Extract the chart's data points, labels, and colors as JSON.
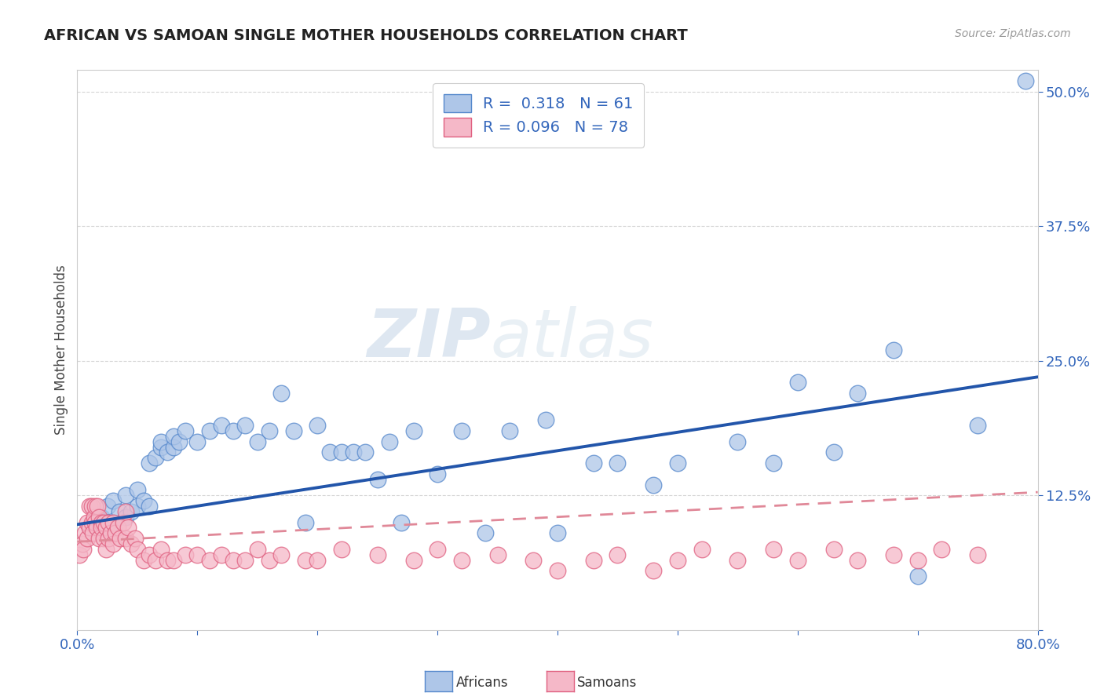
{
  "title": "AFRICAN VS SAMOAN SINGLE MOTHER HOUSEHOLDS CORRELATION CHART",
  "source": "Source: ZipAtlas.com",
  "ylabel": "Single Mother Households",
  "xlim": [
    0.0,
    0.8
  ],
  "ylim": [
    0.0,
    0.52
  ],
  "xticks": [
    0.0,
    0.1,
    0.2,
    0.3,
    0.4,
    0.5,
    0.6,
    0.7,
    0.8
  ],
  "xticklabels": [
    "0.0%",
    "",
    "",
    "",
    "",
    "",
    "",
    "",
    "80.0%"
  ],
  "ytick_positions": [
    0.0,
    0.125,
    0.25,
    0.375,
    0.5
  ],
  "yticklabels": [
    "",
    "12.5%",
    "25.0%",
    "37.5%",
    "50.0%"
  ],
  "african_color": "#aec6e8",
  "samoan_color": "#f5b8c8",
  "african_edge_color": "#5588cc",
  "samoan_edge_color": "#e06080",
  "african_line_color": "#2255aa",
  "samoan_line_color": "#e08898",
  "background_color": "#ffffff",
  "grid_color": "#cccccc",
  "legend_R_african": "0.318",
  "legend_N_african": "61",
  "legend_R_samoan": "0.096",
  "legend_N_samoan": "78",
  "watermark_zip": "ZIP",
  "watermark_atlas": "atlas",
  "african_x": [
    0.01,
    0.015,
    0.02,
    0.025,
    0.03,
    0.03,
    0.035,
    0.04,
    0.04,
    0.045,
    0.05,
    0.05,
    0.055,
    0.06,
    0.06,
    0.065,
    0.07,
    0.07,
    0.075,
    0.08,
    0.08,
    0.085,
    0.09,
    0.1,
    0.11,
    0.12,
    0.13,
    0.14,
    0.15,
    0.16,
    0.17,
    0.18,
    0.19,
    0.2,
    0.21,
    0.22,
    0.23,
    0.24,
    0.25,
    0.26,
    0.27,
    0.28,
    0.3,
    0.32,
    0.34,
    0.36,
    0.39,
    0.4,
    0.43,
    0.45,
    0.48,
    0.5,
    0.55,
    0.58,
    0.6,
    0.63,
    0.65,
    0.68,
    0.7,
    0.75,
    0.79
  ],
  "african_y": [
    0.095,
    0.1,
    0.105,
    0.115,
    0.1,
    0.12,
    0.11,
    0.105,
    0.125,
    0.11,
    0.115,
    0.13,
    0.12,
    0.115,
    0.155,
    0.16,
    0.17,
    0.175,
    0.165,
    0.17,
    0.18,
    0.175,
    0.185,
    0.175,
    0.185,
    0.19,
    0.185,
    0.19,
    0.175,
    0.185,
    0.22,
    0.185,
    0.1,
    0.19,
    0.165,
    0.165,
    0.165,
    0.165,
    0.14,
    0.175,
    0.1,
    0.185,
    0.145,
    0.185,
    0.09,
    0.185,
    0.195,
    0.09,
    0.155,
    0.155,
    0.135,
    0.155,
    0.175,
    0.155,
    0.23,
    0.165,
    0.22,
    0.26,
    0.05,
    0.19,
    0.51
  ],
  "samoan_x": [
    0.002,
    0.004,
    0.005,
    0.006,
    0.008,
    0.008,
    0.01,
    0.01,
    0.012,
    0.012,
    0.013,
    0.014,
    0.015,
    0.015,
    0.016,
    0.017,
    0.018,
    0.018,
    0.02,
    0.02,
    0.022,
    0.022,
    0.024,
    0.024,
    0.026,
    0.026,
    0.028,
    0.03,
    0.03,
    0.032,
    0.034,
    0.036,
    0.038,
    0.04,
    0.04,
    0.042,
    0.045,
    0.048,
    0.05,
    0.055,
    0.06,
    0.065,
    0.07,
    0.075,
    0.08,
    0.09,
    0.1,
    0.11,
    0.12,
    0.13,
    0.14,
    0.15,
    0.16,
    0.17,
    0.19,
    0.2,
    0.22,
    0.25,
    0.28,
    0.3,
    0.32,
    0.35,
    0.38,
    0.4,
    0.43,
    0.45,
    0.48,
    0.5,
    0.52,
    0.55,
    0.58,
    0.6,
    0.63,
    0.65,
    0.68,
    0.7,
    0.72,
    0.75
  ],
  "samoan_y": [
    0.07,
    0.08,
    0.075,
    0.09,
    0.085,
    0.1,
    0.095,
    0.115,
    0.1,
    0.115,
    0.09,
    0.105,
    0.1,
    0.115,
    0.095,
    0.115,
    0.105,
    0.085,
    0.1,
    0.095,
    0.085,
    0.1,
    0.095,
    0.075,
    0.085,
    0.1,
    0.09,
    0.08,
    0.1,
    0.09,
    0.095,
    0.085,
    0.1,
    0.085,
    0.11,
    0.095,
    0.08,
    0.085,
    0.075,
    0.065,
    0.07,
    0.065,
    0.075,
    0.065,
    0.065,
    0.07,
    0.07,
    0.065,
    0.07,
    0.065,
    0.065,
    0.075,
    0.065,
    0.07,
    0.065,
    0.065,
    0.075,
    0.07,
    0.065,
    0.075,
    0.065,
    0.07,
    0.065,
    0.055,
    0.065,
    0.07,
    0.055,
    0.065,
    0.075,
    0.065,
    0.075,
    0.065,
    0.075,
    0.065,
    0.07,
    0.065,
    0.075,
    0.07
  ],
  "african_line_x": [
    0.0,
    0.8
  ],
  "african_line_y": [
    0.098,
    0.235
  ],
  "samoan_line_x": [
    0.0,
    0.8
  ],
  "samoan_line_y": [
    0.082,
    0.128
  ]
}
